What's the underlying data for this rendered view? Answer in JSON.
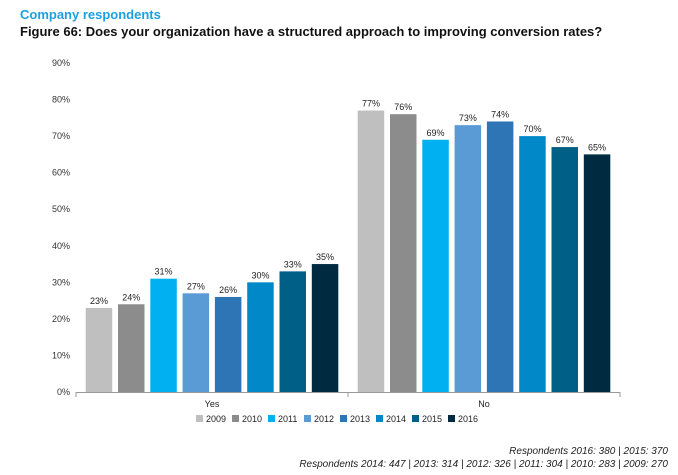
{
  "header": {
    "section": "Company respondents",
    "figure_title": "Figure 66: Does your organization have a structured approach to improving conversion rates?"
  },
  "chart_data": {
    "type": "bar",
    "title": "Figure 66: Does your organization have a structured approach to improving conversion rates?",
    "categories": [
      "Yes",
      "No"
    ],
    "ylim": [
      0,
      90
    ],
    "yticks": [
      "0%",
      "10%",
      "20%",
      "30%",
      "40%",
      "50%",
      "60%",
      "70%",
      "80%",
      "90%"
    ],
    "value_suffix": "%",
    "grid": false,
    "legend_position": "bottom",
    "series": [
      {
        "name": "2009",
        "color": "#bfbfbf",
        "values": [
          23,
          77
        ]
      },
      {
        "name": "2010",
        "color": "#8c8c8c",
        "values": [
          24,
          76
        ]
      },
      {
        "name": "2011",
        "color": "#00b0f0",
        "values": [
          31,
          69
        ]
      },
      {
        "name": "2012",
        "color": "#5b9bd5",
        "values": [
          27,
          73
        ]
      },
      {
        "name": "2013",
        "color": "#2e75b6",
        "values": [
          26,
          74
        ]
      },
      {
        "name": "2014",
        "color": "#0088c9",
        "values": [
          30,
          70
        ]
      },
      {
        "name": "2015",
        "color": "#005f87",
        "values": [
          33,
          67
        ]
      },
      {
        "name": "2016",
        "color": "#002a3f",
        "values": [
          35,
          65
        ]
      }
    ]
  },
  "footer": {
    "respondents_line1": "Respondents 2016: 380 | 2015: 370",
    "respondents_line2": "Respondents 2014: 447 | 2013: 314 | 2012: 326 | 2011: 304 | 2010: 283 | 2009: 270"
  }
}
